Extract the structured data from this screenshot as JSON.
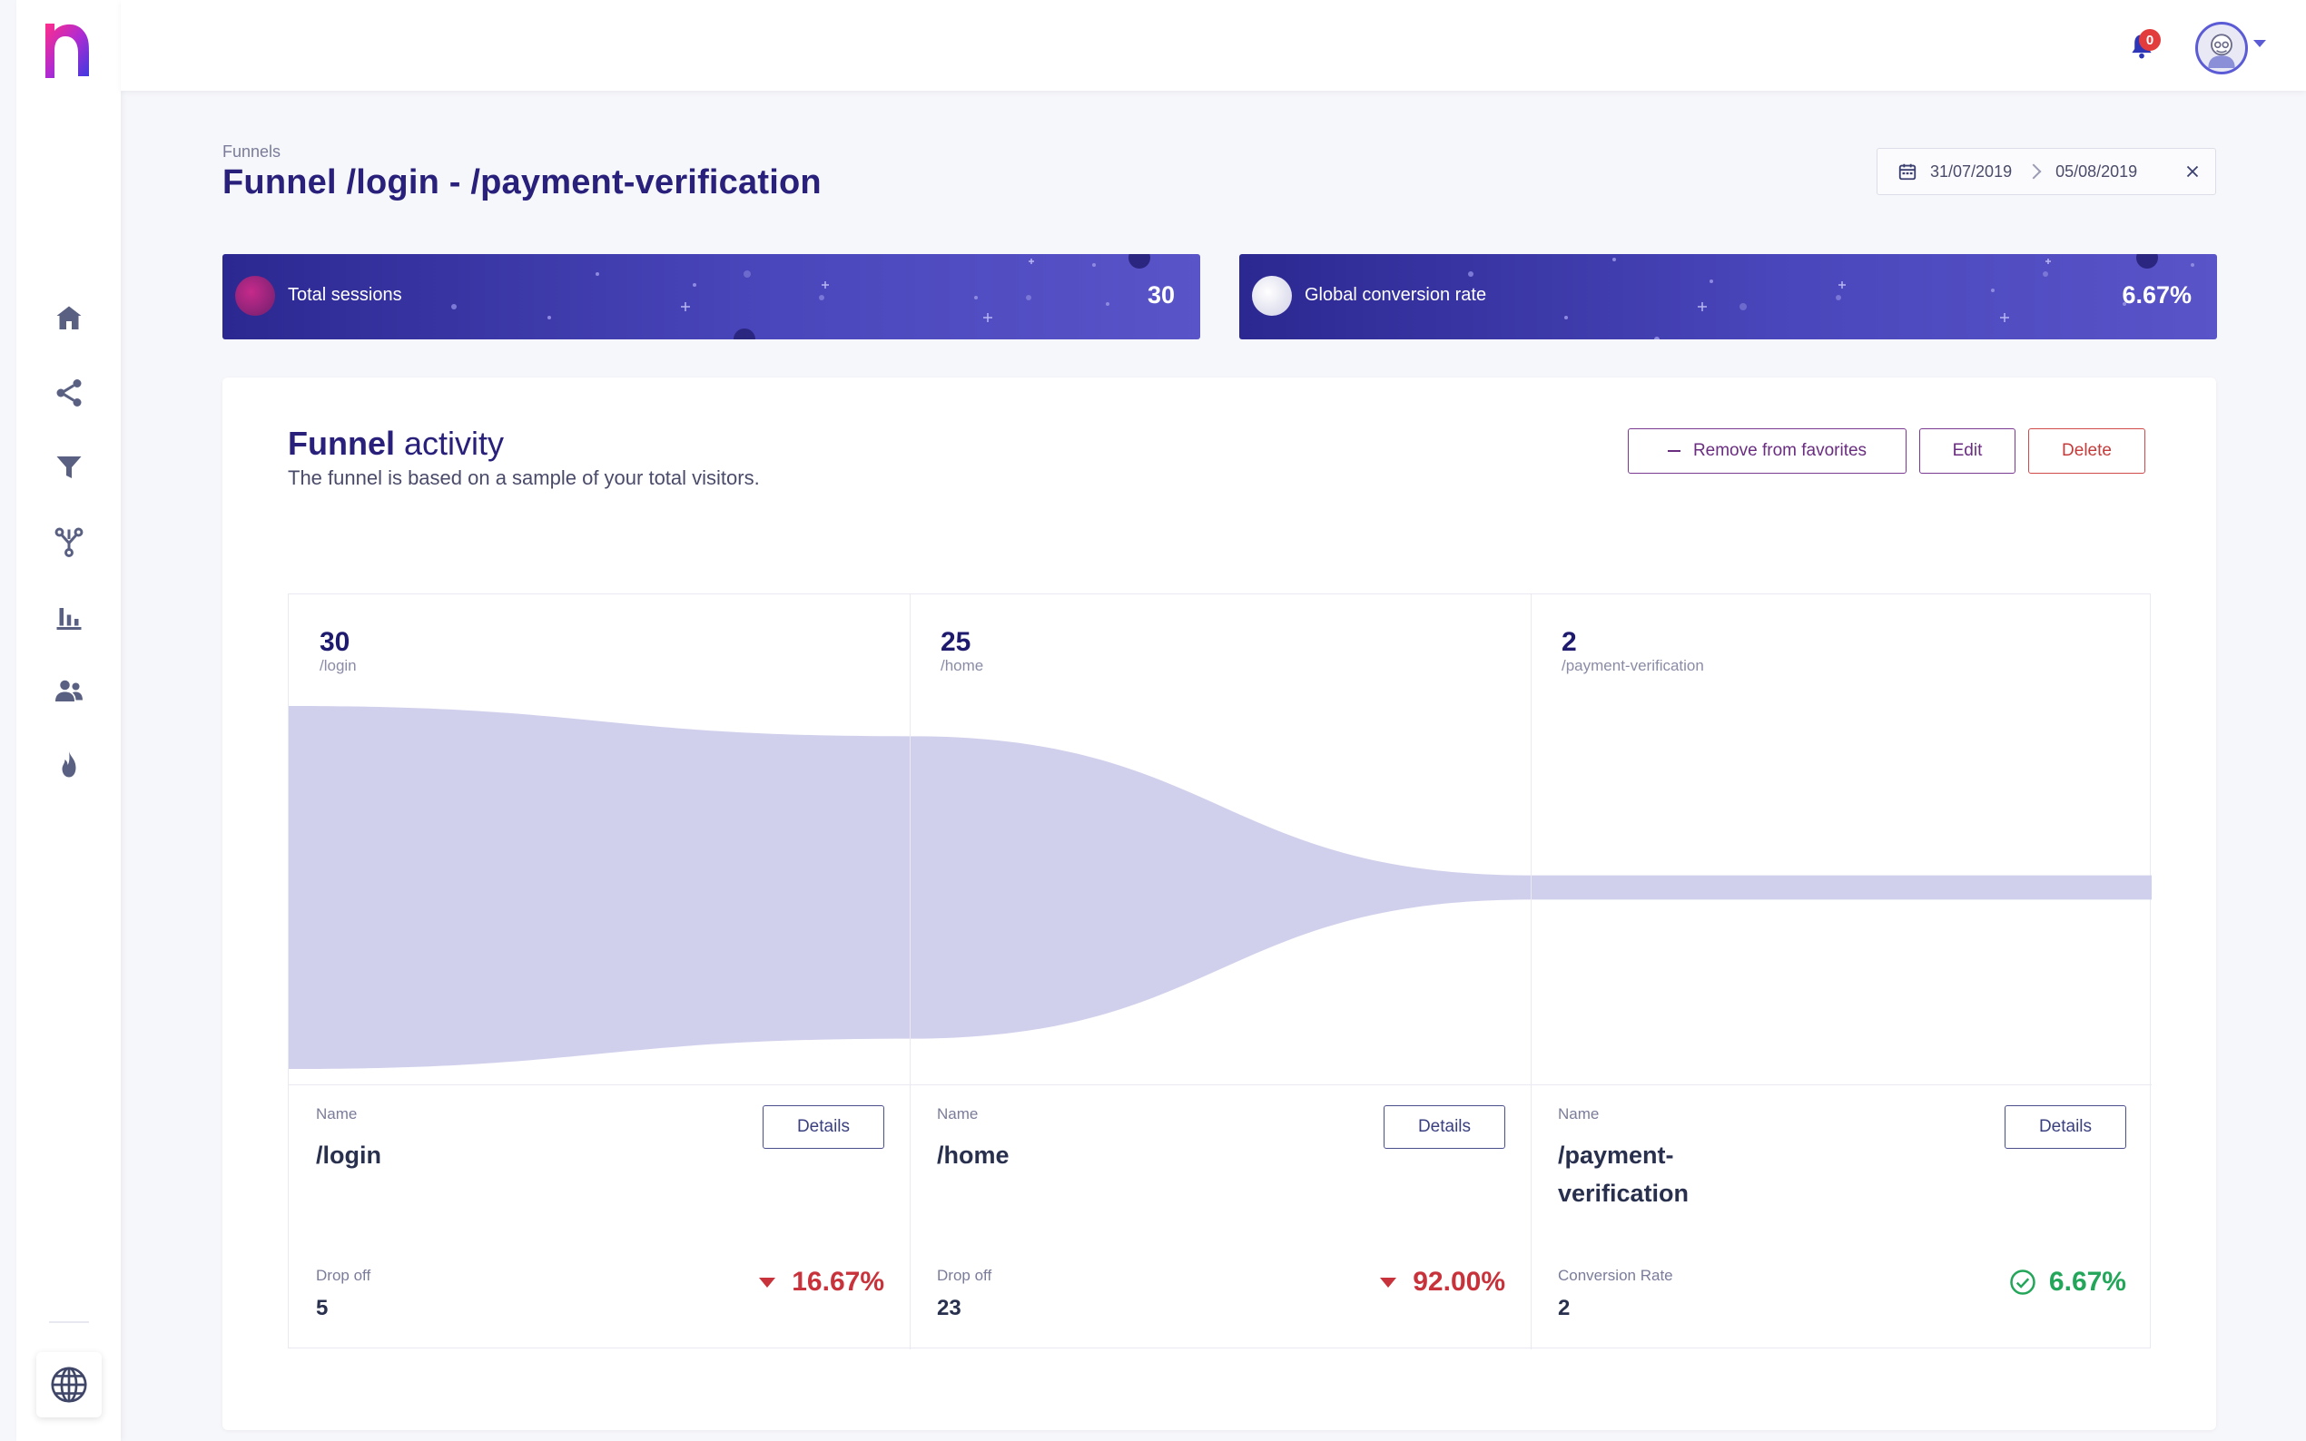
{
  "colors": {
    "primary": "#28207a",
    "accent_purple": "#6a2d80",
    "danger": "#c8323b",
    "success": "#23a65a",
    "funnel_fill": "#d1d0ec"
  },
  "sidebar": {
    "items": [
      {
        "name": "home-icon"
      },
      {
        "name": "share-icon"
      },
      {
        "name": "filter-icon"
      },
      {
        "name": "branch-icon"
      },
      {
        "name": "bar-chart-icon"
      },
      {
        "name": "users-icon"
      },
      {
        "name": "flame-icon"
      }
    ],
    "footer_icon": "globe-icon"
  },
  "header": {
    "notification_count": "0"
  },
  "page": {
    "breadcrumb": "Funnels",
    "title": "Funnel /login - /payment-verification",
    "date_start": "31/07/2019",
    "date_end": "05/08/2019"
  },
  "stats": [
    {
      "label": "Total sessions",
      "value": "30"
    },
    {
      "label": "Global conversion rate",
      "value": "6.67%"
    }
  ],
  "panel": {
    "title_bold": "Funnel",
    "title_light": "activity",
    "subtitle": "The funnel is based on a sample of your total visitors.",
    "remove_fav_label": "Remove from favorites",
    "edit_label": "Edit",
    "delete_label": "Delete"
  },
  "funnel": {
    "steps": [
      {
        "count": "30",
        "path": "/login",
        "name_label": "Name",
        "name": "/login",
        "details_label": "Details",
        "metric_label": "Drop off",
        "metric_value": "5",
        "percent": "16.67%",
        "trend": "down"
      },
      {
        "count": "25",
        "path": "/home",
        "name_label": "Name",
        "name": "/home",
        "details_label": "Details",
        "metric_label": "Drop off",
        "metric_value": "23",
        "percent": "92.00%",
        "trend": "down"
      },
      {
        "count": "2",
        "path": "/payment-verification",
        "name_label": "Name",
        "name": "/payment-verification",
        "name_display": "/payment-\nverification",
        "details_label": "Details",
        "metric_label": "Conversion Rate",
        "metric_value": "2",
        "percent": "6.67%",
        "trend": "up"
      }
    ]
  },
  "chart_data": {
    "type": "area",
    "categories": [
      "/login",
      "/home",
      "/payment-verification"
    ],
    "values": [
      30,
      25,
      2
    ],
    "ylim": [
      0,
      30
    ]
  }
}
